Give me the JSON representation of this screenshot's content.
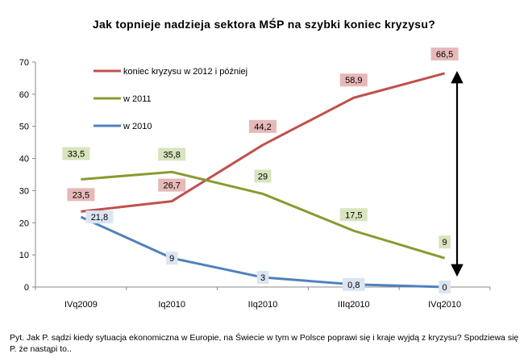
{
  "title": "Jak topnieje nadzieja sektora MŚP na szybki koniec kryzysu?",
  "footnote": "Pyt. Jak P. sądzi kiedy sytuacja ekonomiczna w Europie, na Świecie w tym w Polsce poprawi się i kraje wyjdą z kryzysu? Spodziewa się P. że nastąpi to..",
  "chart_data": {
    "type": "line",
    "categories": [
      "IVq2009",
      "Iq2010",
      "IIq2010",
      "IIIq2010",
      "IVq2010"
    ],
    "ylim": [
      0,
      70
    ],
    "yticks": [
      0,
      10,
      20,
      30,
      40,
      50,
      60,
      70
    ],
    "grid": false,
    "legend_position": "top-left",
    "series": [
      {
        "name": "koniec kryzysu w 2012 i później",
        "color": "#c0504d",
        "label_bg": "#e6b9b8",
        "values": [
          23.5,
          26.7,
          44.2,
          58.9,
          66.5
        ],
        "labels": [
          "23,5",
          "26,7",
          "44,2",
          "58,9",
          "66,5"
        ]
      },
      {
        "name": "w 2011",
        "color": "#8a9a2e",
        "label_bg": "#d7e4bd",
        "values": [
          33.5,
          35.8,
          29,
          17.5,
          9
        ],
        "labels": [
          "33,5",
          "35,8",
          "29",
          "17,5",
          "9"
        ]
      },
      {
        "name": "w 2010",
        "color": "#4f81bd",
        "label_bg": "#dbe5f1",
        "values": [
          21.8,
          9,
          3,
          0.8,
          0
        ],
        "labels": [
          "21,8",
          "9",
          "3",
          "0,8",
          "0"
        ]
      }
    ]
  }
}
